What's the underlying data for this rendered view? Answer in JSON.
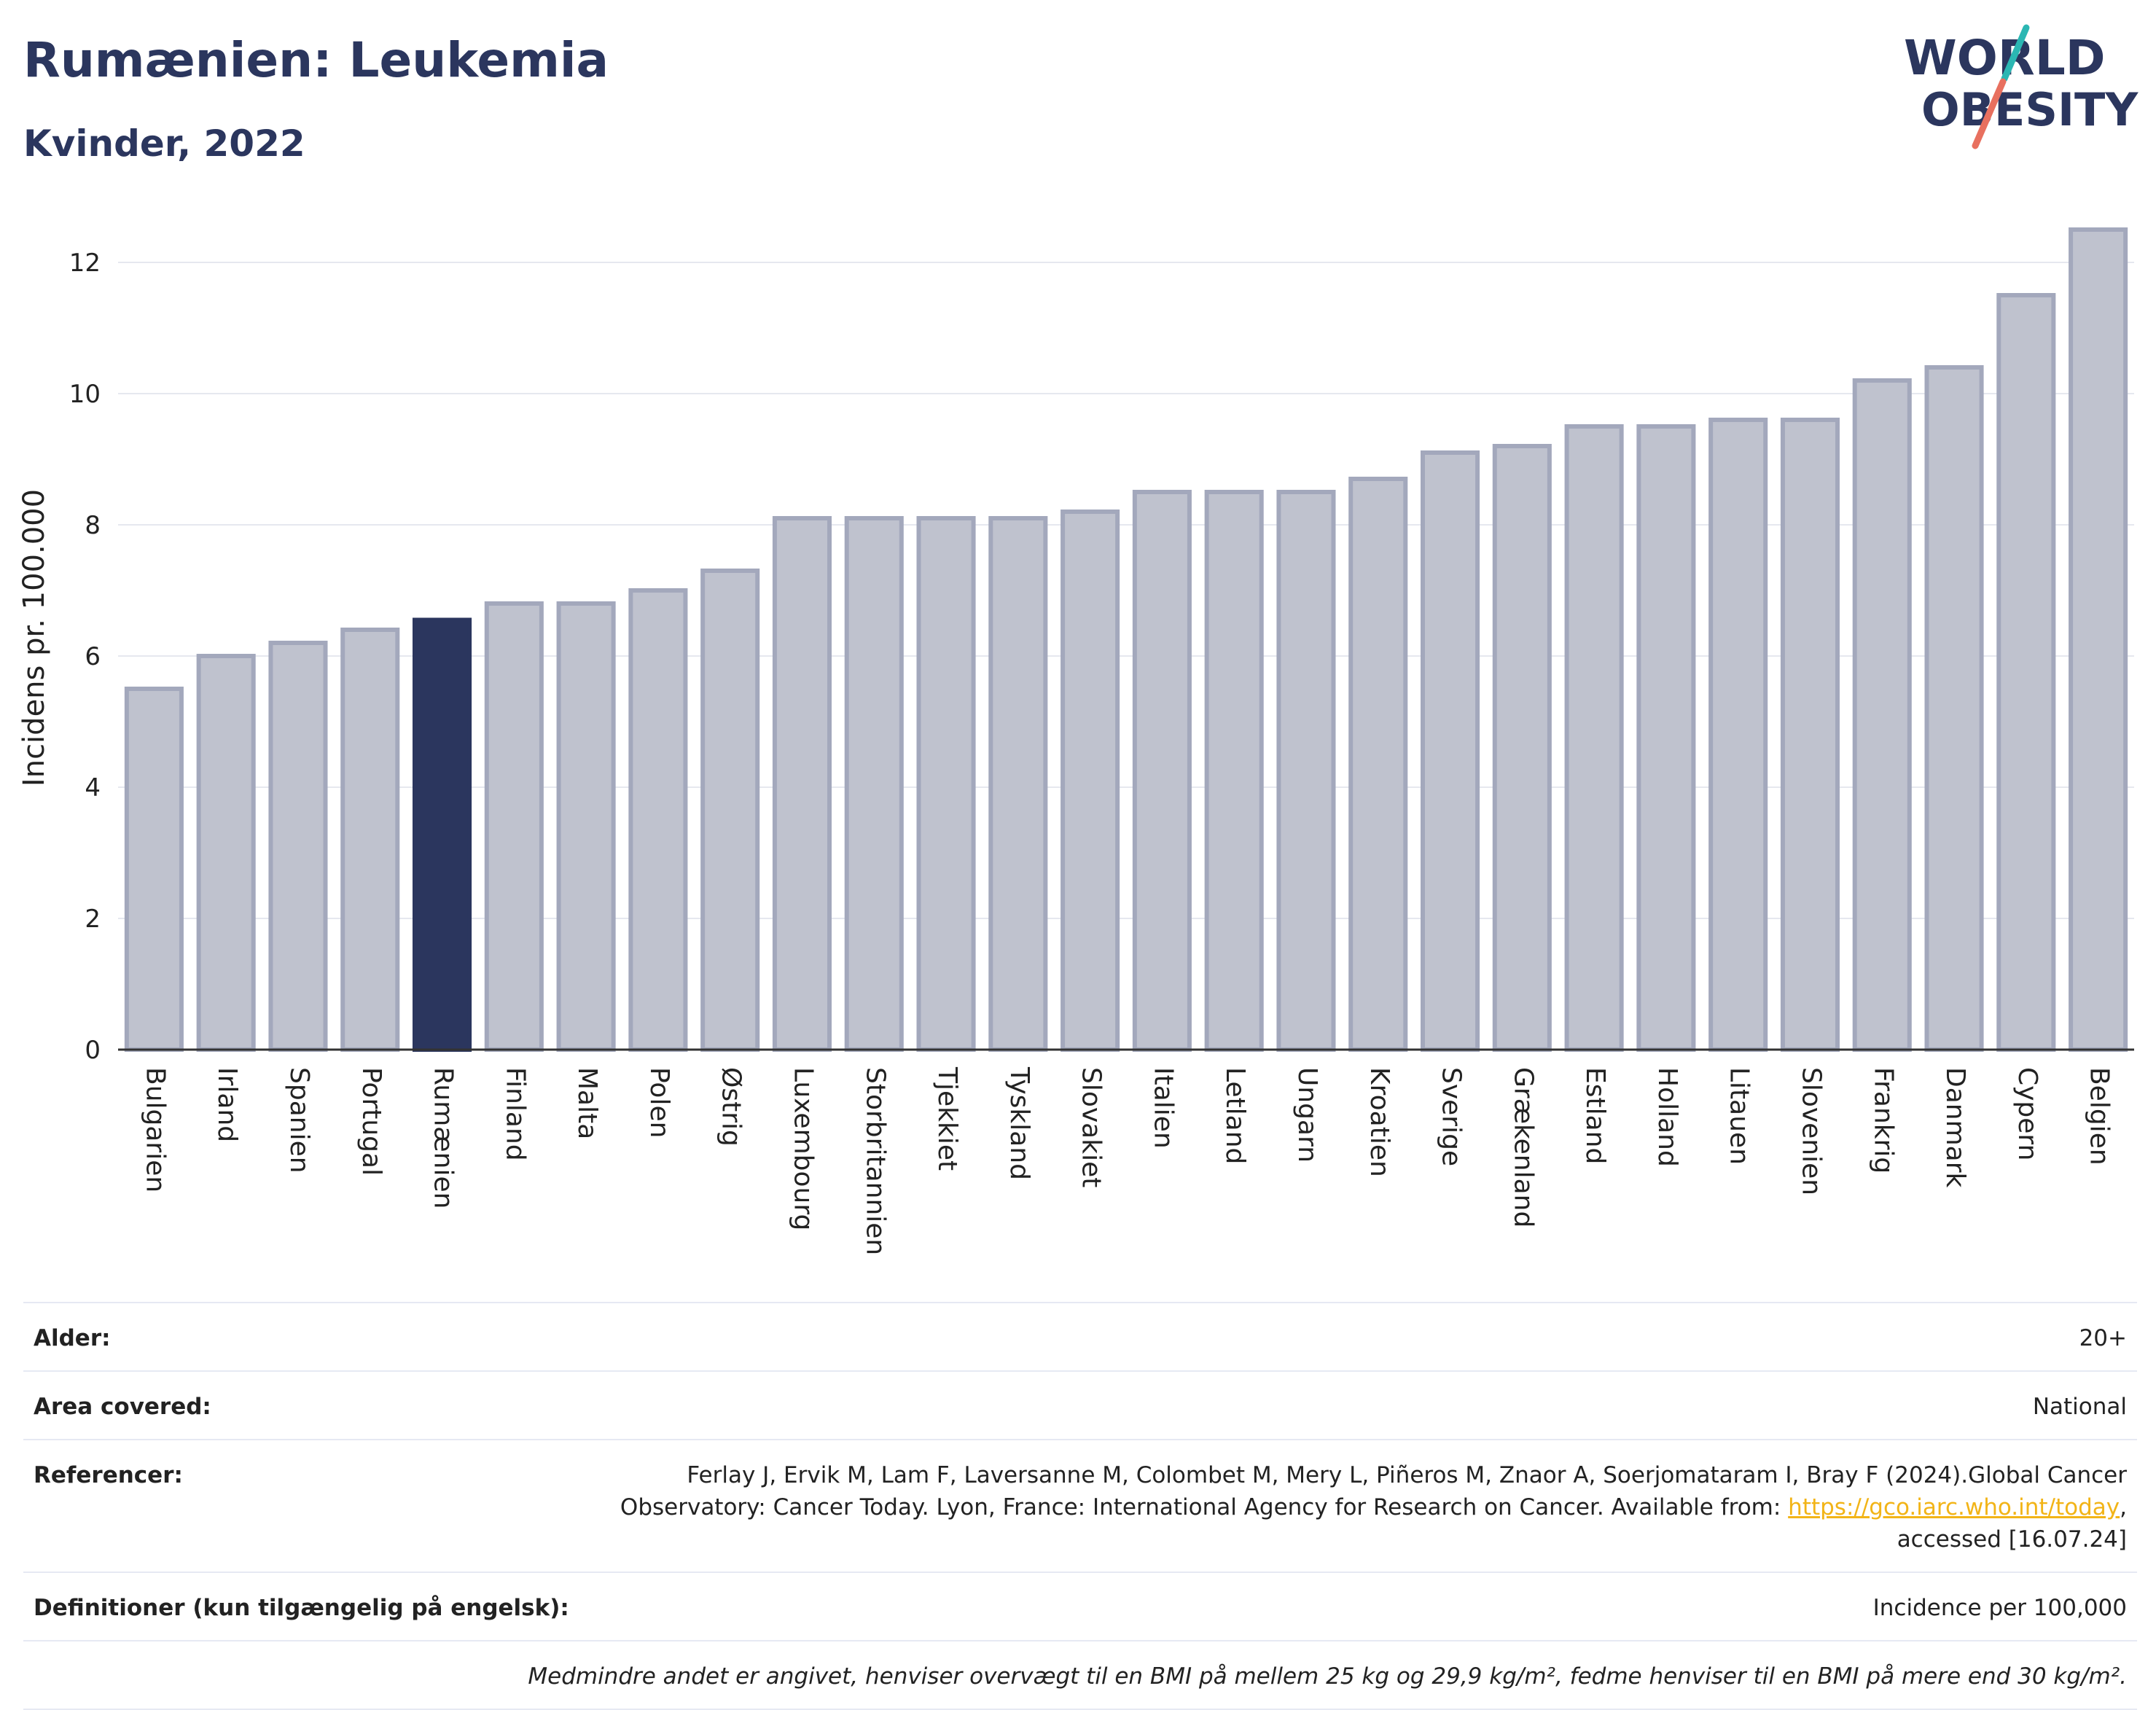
{
  "header": {
    "title": "Rumænien: Leukemia",
    "subtitle": "Kvinder, 2022"
  },
  "logo": {
    "line1": "WORLD",
    "line2": "OBESITY",
    "colors": {
      "text": "#2b365e",
      "slash_top": "#2bb7b3",
      "slash_bottom": "#e8705f"
    }
  },
  "chart_data": {
    "type": "bar",
    "title": "",
    "xlabel": "",
    "ylabel": "Incidens pr. 100.000",
    "ylim": [
      0,
      13
    ],
    "yticks": [
      0,
      2,
      4,
      6,
      8,
      10,
      12
    ],
    "grid": true,
    "highlight": "Rumænien",
    "colors": {
      "bar": "#bfc2ce",
      "bar_border": "#a3a8bc",
      "highlight": "#2b365e",
      "grid": "#e6e8ef"
    },
    "categories": [
      "Bulgarien",
      "Irland",
      "Spanien",
      "Portugal",
      "Rumænien",
      "Finland",
      "Malta",
      "Polen",
      "Østrig",
      "Luxembourg",
      "Storbritannien",
      "Tjekkiet",
      "Tyskland",
      "Slovakiet",
      "Italien",
      "Letland",
      "Ungarn",
      "Kroatien",
      "Sverige",
      "Grækenland",
      "Estland",
      "Holland",
      "Litauen",
      "Slovenien",
      "Frankrig",
      "Danmark",
      "Cypern",
      "Belgien"
    ],
    "values": [
      5.5,
      6.0,
      6.2,
      6.4,
      6.55,
      6.8,
      6.8,
      7.0,
      7.3,
      8.1,
      8.1,
      8.1,
      8.1,
      8.2,
      8.5,
      8.5,
      8.5,
      8.7,
      9.1,
      9.2,
      9.5,
      9.5,
      9.6,
      9.6,
      10.2,
      10.4,
      11.5,
      12.5
    ]
  },
  "info": {
    "age_label": "Alder:",
    "age_value": "20+",
    "area_label": "Area covered:",
    "area_value": "National",
    "ref_label": "Referencer:",
    "ref_text": "Ferlay J, Ervik M, Lam F, Laversanne M, Colombet M, Mery L, Piñeros M, Znaor A, Soerjomataram I, Bray F (2024).Global Cancer Observatory: Cancer Today. Lyon, France: International Agency for Research on Cancer. Available from: ",
    "ref_link": "https://gco.iarc.who.int/today",
    "ref_suffix": ", accessed [16.07.24]",
    "def_label": "Definitioner (kun tilgængelig på engelsk):",
    "def_value": "Incidence per 100,000",
    "note": "Medmindre andet er angivet, henviser overvægt til en BMI på mellem 25 kg og 29,9 kg/m², fedme henviser til en BMI på mere end 30 kg/m²."
  }
}
